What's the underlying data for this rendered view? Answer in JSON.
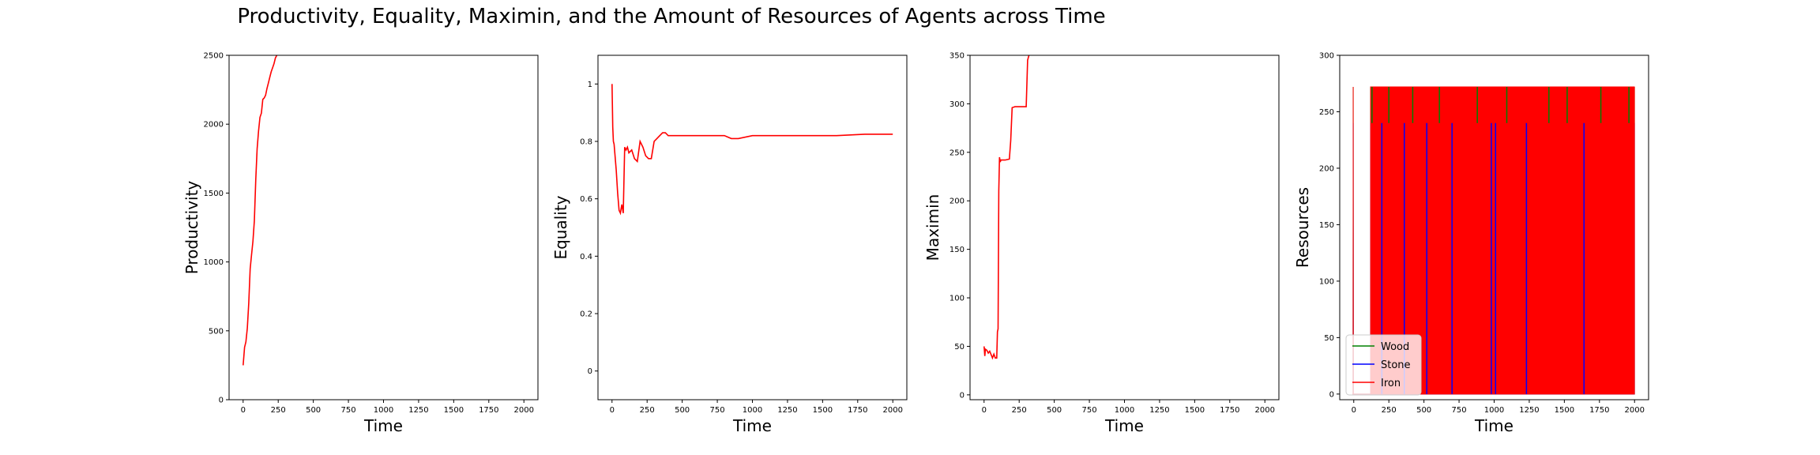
{
  "figure": {
    "title": "Productivity, Equality, Maximin, and the Amount of Resources of Agents across Time"
  },
  "colors": {
    "line": "#ff0000",
    "wood": "#008000",
    "stone": "#0000ff",
    "iron": "#ff0000"
  },
  "chart_data": [
    {
      "type": "line",
      "xlabel": "Time",
      "ylabel": "Productivity",
      "xlim": [
        -100,
        2100
      ],
      "ylim": [
        0,
        2500
      ],
      "xticks": [
        0,
        250,
        500,
        750,
        1000,
        1250,
        1500,
        1750,
        2000
      ],
      "yticks": [
        0,
        500,
        1000,
        1500,
        2000,
        2500
      ],
      "series": [
        {
          "x": [
            0,
            10,
            20,
            30,
            40,
            50,
            60,
            70,
            80,
            90,
            100,
            110,
            120,
            130,
            140,
            150,
            160,
            170,
            180,
            190,
            200,
            210,
            220,
            230,
            240,
            250
          ],
          "y": [
            250,
            380,
            420,
            520,
            700,
            950,
            1050,
            1150,
            1300,
            1600,
            1820,
            1950,
            2050,
            2080,
            2180,
            2190,
            2210,
            2260,
            2300,
            2340,
            2380,
            2410,
            2440,
            2480,
            2500,
            2510
          ]
        }
      ]
    },
    {
      "type": "line",
      "xlabel": "Time",
      "ylabel": "Equality",
      "xlim": [
        -100,
        2100
      ],
      "ylim": [
        -0.1,
        1.1
      ],
      "xticks": [
        0,
        250,
        500,
        750,
        1000,
        1250,
        1500,
        1750,
        2000
      ],
      "yticks": [
        0.0,
        0.2,
        0.4,
        0.6,
        0.8,
        1.0
      ],
      "series": [
        {
          "x": [
            0,
            5,
            10,
            15,
            20,
            30,
            40,
            50,
            60,
            70,
            80,
            90,
            100,
            110,
            120,
            140,
            160,
            180,
            200,
            220,
            240,
            260,
            280,
            300,
            320,
            340,
            360,
            380,
            400,
            450,
            500,
            600,
            700,
            800,
            850,
            900,
            1000,
            1200,
            1400,
            1600,
            1800,
            2000
          ],
          "y": [
            1.0,
            0.85,
            0.8,
            0.79,
            0.76,
            0.7,
            0.62,
            0.56,
            0.55,
            0.58,
            0.55,
            0.78,
            0.77,
            0.78,
            0.76,
            0.77,
            0.74,
            0.73,
            0.8,
            0.78,
            0.75,
            0.74,
            0.74,
            0.8,
            0.81,
            0.82,
            0.83,
            0.83,
            0.82,
            0.82,
            0.82,
            0.82,
            0.82,
            0.82,
            0.81,
            0.81,
            0.82,
            0.82,
            0.82,
            0.82,
            0.825,
            0.825
          ]
        }
      ]
    },
    {
      "type": "line",
      "xlabel": "Time",
      "ylabel": "Maximin",
      "xlim": [
        -100,
        2100
      ],
      "ylim": [
        -5,
        350
      ],
      "xticks": [
        0,
        250,
        500,
        750,
        1000,
        1250,
        1500,
        1750,
        2000
      ],
      "yticks": [
        0,
        50,
        100,
        150,
        200,
        250,
        300,
        350
      ],
      "series": [
        {
          "x": [
            0,
            5,
            10,
            20,
            30,
            40,
            60,
            70,
            80,
            90,
            95,
            100,
            105,
            110,
            115,
            120,
            150,
            180,
            190,
            200,
            220,
            240,
            260,
            280,
            300,
            310,
            320
          ],
          "y": [
            50,
            40,
            47,
            46,
            43,
            45,
            38,
            42,
            38,
            38,
            65,
            68,
            210,
            245,
            240,
            242,
            242,
            243,
            262,
            296,
            297,
            297,
            297,
            297,
            297,
            345,
            350
          ]
        }
      ]
    },
    {
      "type": "line",
      "xlabel": "Time",
      "ylabel": "Resources",
      "xlim": [
        -100,
        2100
      ],
      "ylim": [
        -5,
        300
      ],
      "xticks": [
        0,
        250,
        500,
        750,
        1000,
        1250,
        1500,
        1750,
        2000
      ],
      "yticks": [
        0,
        50,
        100,
        150,
        200,
        250,
        300
      ],
      "legend_loc": "lower-left",
      "series": [
        {
          "name": "Wood",
          "x": [
            0,
            2000
          ],
          "y": [
            0,
            272
          ]
        },
        {
          "name": "Stone",
          "x": [
            0,
            2000
          ],
          "y": [
            0,
            240
          ]
        },
        {
          "name": "Iron",
          "x": [
            0,
            2000
          ],
          "y": [
            0,
            272
          ]
        }
      ],
      "oscillation": {
        "low": 0,
        "wood_high": 272,
        "stone_high": 240,
        "iron_high": 272,
        "start": 120,
        "end": 2000
      }
    }
  ]
}
